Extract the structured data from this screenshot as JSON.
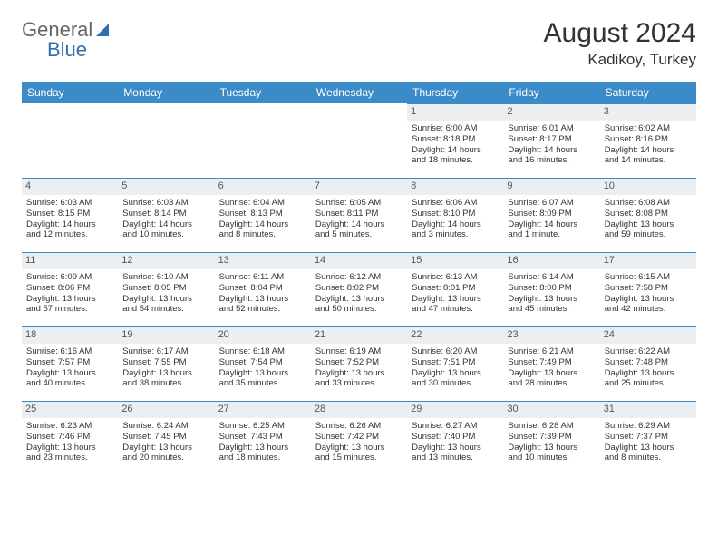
{
  "logo": {
    "line1": "General",
    "line2": "Blue"
  },
  "title": "August 2024",
  "location": "Kadikoy, Turkey",
  "colors": {
    "header_bg": "#3b8bc9",
    "header_text": "#ffffff",
    "daynum_bg": "#eceff2",
    "border_accent": "#3b8bc9",
    "text": "#333333",
    "logo_blue": "#2f6fb0"
  },
  "day_headers": [
    "Sunday",
    "Monday",
    "Tuesday",
    "Wednesday",
    "Thursday",
    "Friday",
    "Saturday"
  ],
  "weeks": [
    [
      {
        "n": "",
        "lines": []
      },
      {
        "n": "",
        "lines": []
      },
      {
        "n": "",
        "lines": []
      },
      {
        "n": "",
        "lines": []
      },
      {
        "n": "1",
        "lines": [
          "Sunrise: 6:00 AM",
          "Sunset: 8:18 PM",
          "Daylight: 14 hours",
          "and 18 minutes."
        ]
      },
      {
        "n": "2",
        "lines": [
          "Sunrise: 6:01 AM",
          "Sunset: 8:17 PM",
          "Daylight: 14 hours",
          "and 16 minutes."
        ]
      },
      {
        "n": "3",
        "lines": [
          "Sunrise: 6:02 AM",
          "Sunset: 8:16 PM",
          "Daylight: 14 hours",
          "and 14 minutes."
        ]
      }
    ],
    [
      {
        "n": "4",
        "lines": [
          "Sunrise: 6:03 AM",
          "Sunset: 8:15 PM",
          "Daylight: 14 hours",
          "and 12 minutes."
        ]
      },
      {
        "n": "5",
        "lines": [
          "Sunrise: 6:03 AM",
          "Sunset: 8:14 PM",
          "Daylight: 14 hours",
          "and 10 minutes."
        ]
      },
      {
        "n": "6",
        "lines": [
          "Sunrise: 6:04 AM",
          "Sunset: 8:13 PM",
          "Daylight: 14 hours",
          "and 8 minutes."
        ]
      },
      {
        "n": "7",
        "lines": [
          "Sunrise: 6:05 AM",
          "Sunset: 8:11 PM",
          "Daylight: 14 hours",
          "and 5 minutes."
        ]
      },
      {
        "n": "8",
        "lines": [
          "Sunrise: 6:06 AM",
          "Sunset: 8:10 PM",
          "Daylight: 14 hours",
          "and 3 minutes."
        ]
      },
      {
        "n": "9",
        "lines": [
          "Sunrise: 6:07 AM",
          "Sunset: 8:09 PM",
          "Daylight: 14 hours",
          "and 1 minute."
        ]
      },
      {
        "n": "10",
        "lines": [
          "Sunrise: 6:08 AM",
          "Sunset: 8:08 PM",
          "Daylight: 13 hours",
          "and 59 minutes."
        ]
      }
    ],
    [
      {
        "n": "11",
        "lines": [
          "Sunrise: 6:09 AM",
          "Sunset: 8:06 PM",
          "Daylight: 13 hours",
          "and 57 minutes."
        ]
      },
      {
        "n": "12",
        "lines": [
          "Sunrise: 6:10 AM",
          "Sunset: 8:05 PM",
          "Daylight: 13 hours",
          "and 54 minutes."
        ]
      },
      {
        "n": "13",
        "lines": [
          "Sunrise: 6:11 AM",
          "Sunset: 8:04 PM",
          "Daylight: 13 hours",
          "and 52 minutes."
        ]
      },
      {
        "n": "14",
        "lines": [
          "Sunrise: 6:12 AM",
          "Sunset: 8:02 PM",
          "Daylight: 13 hours",
          "and 50 minutes."
        ]
      },
      {
        "n": "15",
        "lines": [
          "Sunrise: 6:13 AM",
          "Sunset: 8:01 PM",
          "Daylight: 13 hours",
          "and 47 minutes."
        ]
      },
      {
        "n": "16",
        "lines": [
          "Sunrise: 6:14 AM",
          "Sunset: 8:00 PM",
          "Daylight: 13 hours",
          "and 45 minutes."
        ]
      },
      {
        "n": "17",
        "lines": [
          "Sunrise: 6:15 AM",
          "Sunset: 7:58 PM",
          "Daylight: 13 hours",
          "and 42 minutes."
        ]
      }
    ],
    [
      {
        "n": "18",
        "lines": [
          "Sunrise: 6:16 AM",
          "Sunset: 7:57 PM",
          "Daylight: 13 hours",
          "and 40 minutes."
        ]
      },
      {
        "n": "19",
        "lines": [
          "Sunrise: 6:17 AM",
          "Sunset: 7:55 PM",
          "Daylight: 13 hours",
          "and 38 minutes."
        ]
      },
      {
        "n": "20",
        "lines": [
          "Sunrise: 6:18 AM",
          "Sunset: 7:54 PM",
          "Daylight: 13 hours",
          "and 35 minutes."
        ]
      },
      {
        "n": "21",
        "lines": [
          "Sunrise: 6:19 AM",
          "Sunset: 7:52 PM",
          "Daylight: 13 hours",
          "and 33 minutes."
        ]
      },
      {
        "n": "22",
        "lines": [
          "Sunrise: 6:20 AM",
          "Sunset: 7:51 PM",
          "Daylight: 13 hours",
          "and 30 minutes."
        ]
      },
      {
        "n": "23",
        "lines": [
          "Sunrise: 6:21 AM",
          "Sunset: 7:49 PM",
          "Daylight: 13 hours",
          "and 28 minutes."
        ]
      },
      {
        "n": "24",
        "lines": [
          "Sunrise: 6:22 AM",
          "Sunset: 7:48 PM",
          "Daylight: 13 hours",
          "and 25 minutes."
        ]
      }
    ],
    [
      {
        "n": "25",
        "lines": [
          "Sunrise: 6:23 AM",
          "Sunset: 7:46 PM",
          "Daylight: 13 hours",
          "and 23 minutes."
        ]
      },
      {
        "n": "26",
        "lines": [
          "Sunrise: 6:24 AM",
          "Sunset: 7:45 PM",
          "Daylight: 13 hours",
          "and 20 minutes."
        ]
      },
      {
        "n": "27",
        "lines": [
          "Sunrise: 6:25 AM",
          "Sunset: 7:43 PM",
          "Daylight: 13 hours",
          "and 18 minutes."
        ]
      },
      {
        "n": "28",
        "lines": [
          "Sunrise: 6:26 AM",
          "Sunset: 7:42 PM",
          "Daylight: 13 hours",
          "and 15 minutes."
        ]
      },
      {
        "n": "29",
        "lines": [
          "Sunrise: 6:27 AM",
          "Sunset: 7:40 PM",
          "Daylight: 13 hours",
          "and 13 minutes."
        ]
      },
      {
        "n": "30",
        "lines": [
          "Sunrise: 6:28 AM",
          "Sunset: 7:39 PM",
          "Daylight: 13 hours",
          "and 10 minutes."
        ]
      },
      {
        "n": "31",
        "lines": [
          "Sunrise: 6:29 AM",
          "Sunset: 7:37 PM",
          "Daylight: 13 hours",
          "and 8 minutes."
        ]
      }
    ]
  ]
}
